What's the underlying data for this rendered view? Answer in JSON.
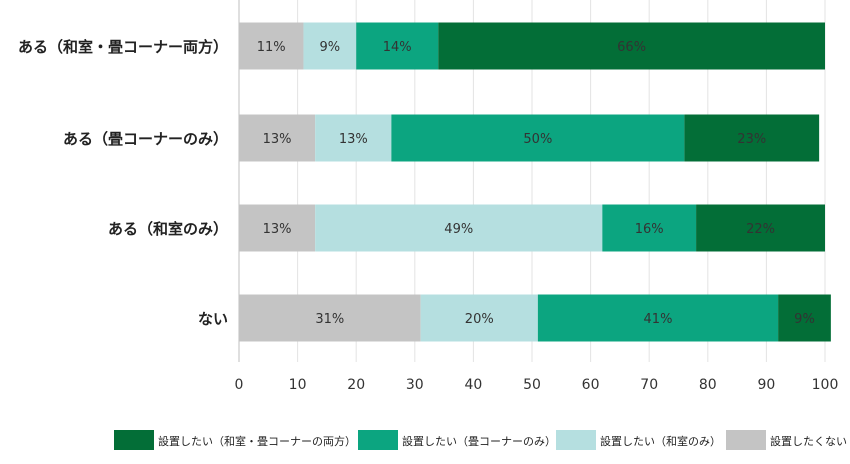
{
  "chart_data": {
    "type": "bar",
    "orientation": "horizontal",
    "stacked": true,
    "categories": [
      "ある（和室・畳コーナー両方）",
      "ある（畳コーナーのみ）",
      "ある（和室のみ）",
      "ない"
    ],
    "series": [
      {
        "name": "設置したくない",
        "color": "#c4c4c4",
        "values": [
          11,
          13,
          13,
          31
        ]
      },
      {
        "name": "設置したい（和室のみ）",
        "color": "#b5dfe0",
        "values": [
          9,
          13,
          49,
          20
        ]
      },
      {
        "name": "設置したい（畳コーナーのみ）",
        "color": "#0ca580",
        "values": [
          14,
          50,
          16,
          41
        ]
      },
      {
        "name": "設置したい（和室・畳コーナーの両方）",
        "color": "#036e37",
        "values": [
          66,
          23,
          22,
          9
        ]
      }
    ],
    "legend_order": [
      3,
      2,
      1,
      0
    ],
    "legend_placement": "bottom",
    "xlim": [
      0,
      100
    ],
    "xticks": [
      0,
      10,
      20,
      30,
      40,
      50,
      60,
      70,
      80,
      90,
      100
    ],
    "value_suffix": "%",
    "grid": true,
    "title": "",
    "xlabel": "",
    "ylabel": ""
  }
}
